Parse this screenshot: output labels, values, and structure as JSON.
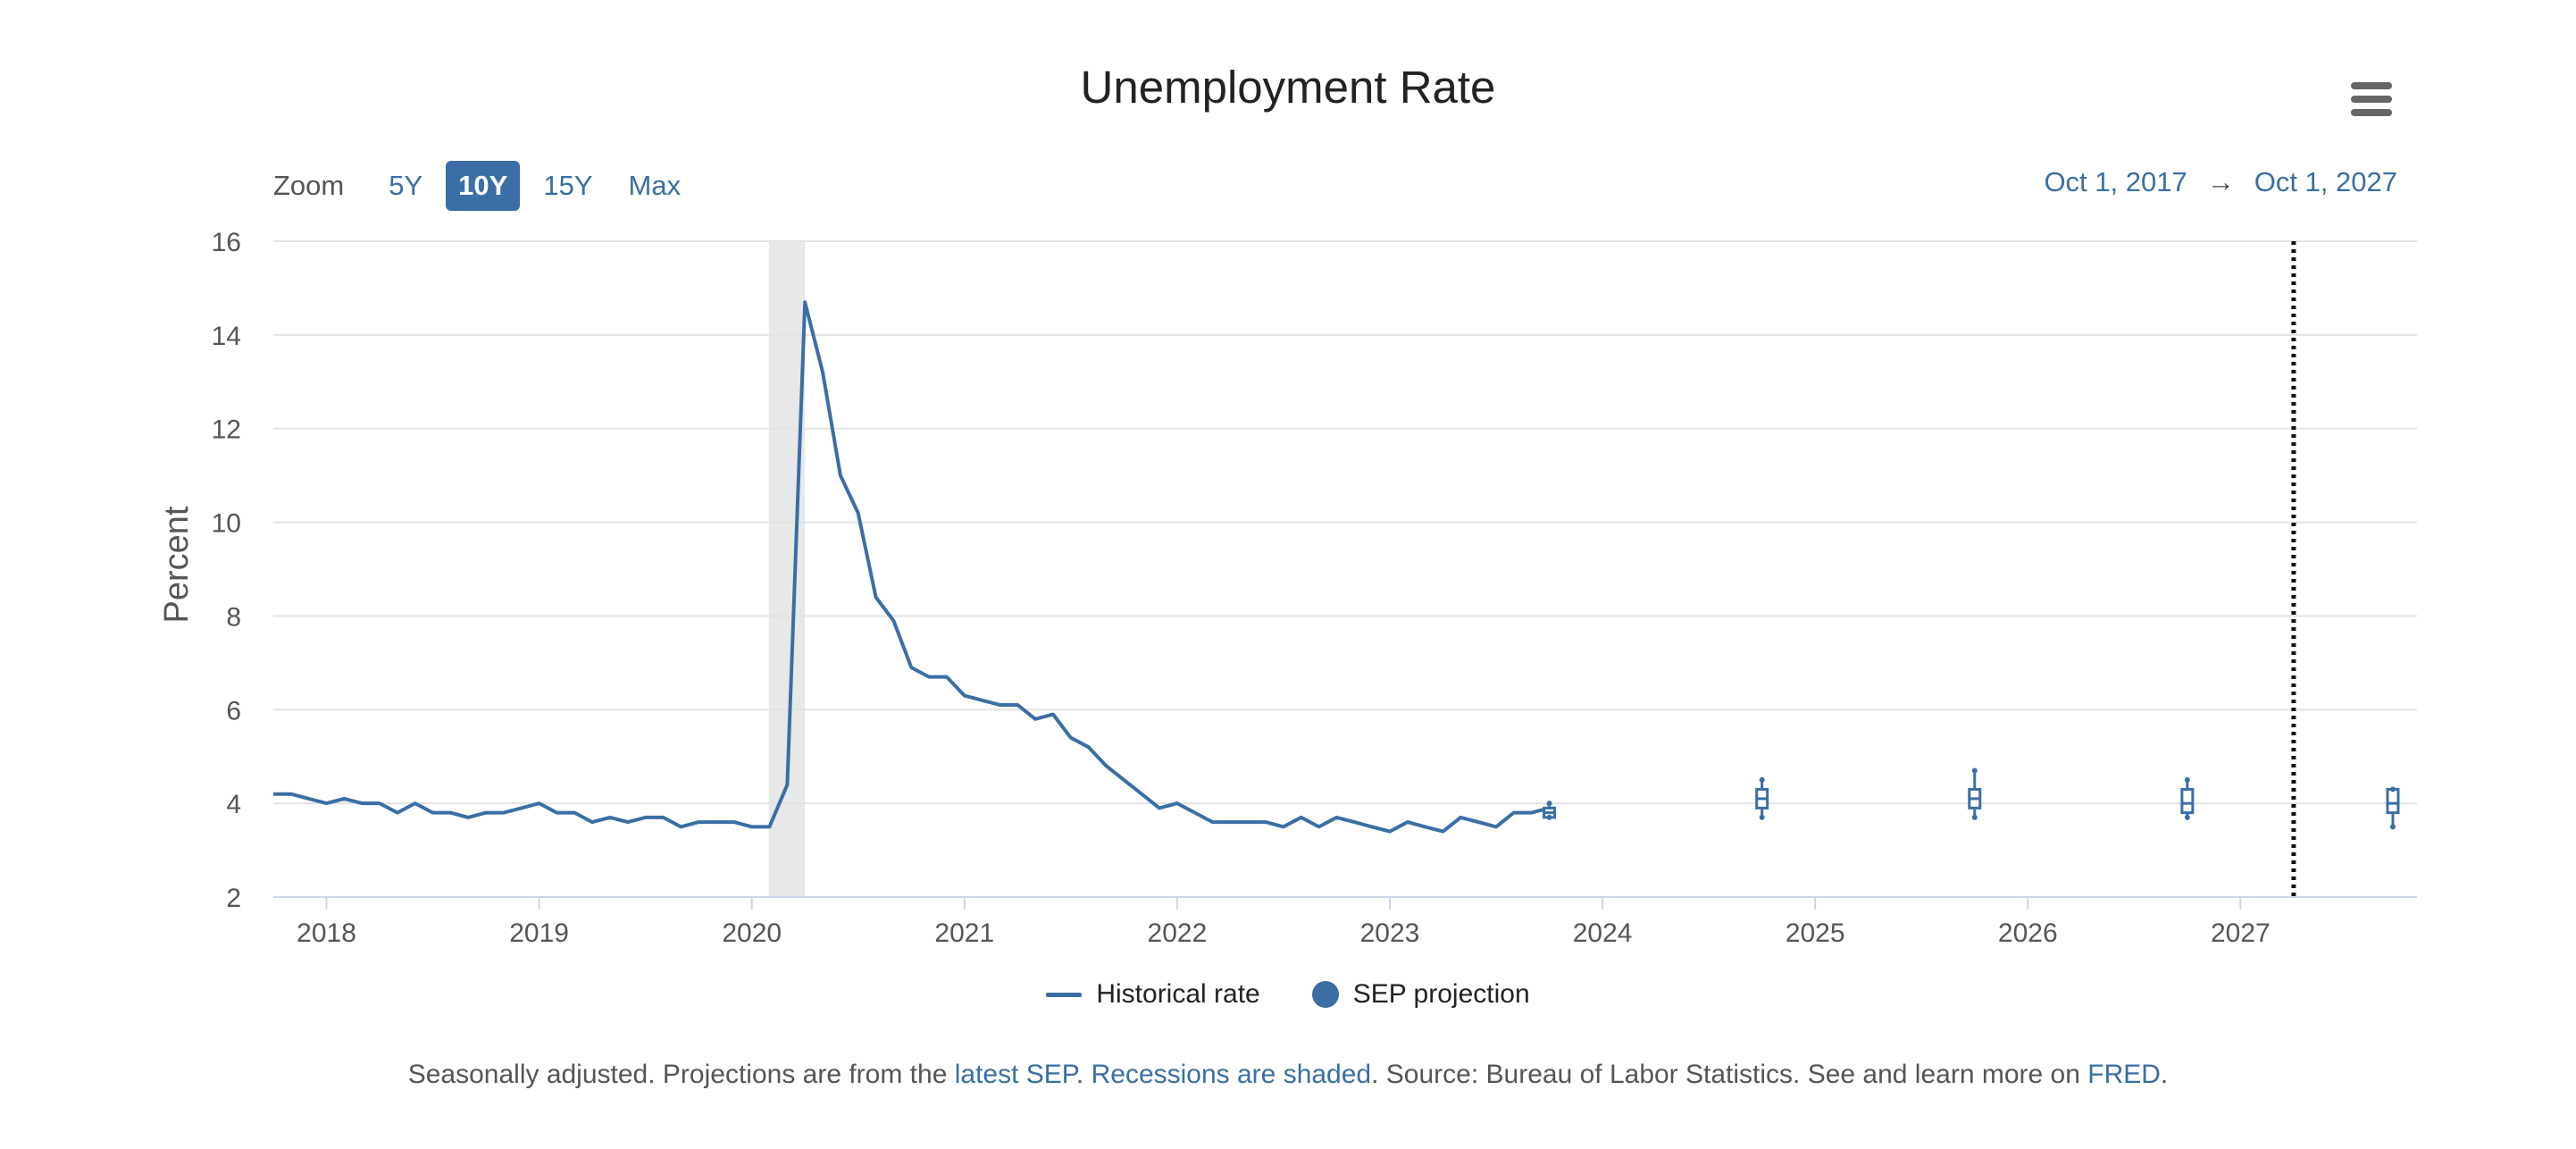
{
  "header": {
    "title": "Unemployment Rate",
    "menu_icon": "hamburger-menu-icon"
  },
  "zoom": {
    "label": "Zoom",
    "options": [
      "5Y",
      "10Y",
      "15Y",
      "Max"
    ],
    "active": "10Y"
  },
  "range": {
    "from": "Oct 1, 2017",
    "arrow": "→",
    "to": "Oct 1, 2027"
  },
  "legend": {
    "historical": "Historical rate",
    "projection": "SEP projection"
  },
  "footer": {
    "t1": "Seasonally adjusted. Projections are from the ",
    "link1": "latest SEP",
    "t2": ". ",
    "link2": "Recessions are shaded",
    "t3": ". Source: Bureau of Labor Statistics. See and learn more on ",
    "link3": "FRED",
    "t4": "."
  },
  "colors": {
    "series": "#3a6ea5",
    "recession": "#e8e8e8",
    "grid": "#e3e3e3",
    "axis": "#ccd6eb",
    "text": "#555555"
  },
  "chart_data": {
    "type": "line",
    "title": "Unemployment Rate",
    "xlabel": "",
    "ylabel": "Percent",
    "xlim": [
      2017.75,
      2027.83
    ],
    "ylim": [
      2,
      16
    ],
    "yticks": [
      2,
      4,
      6,
      8,
      10,
      12,
      14,
      16
    ],
    "xticks": [
      2018,
      2019,
      2020,
      2021,
      2022,
      2023,
      2024,
      2025,
      2026,
      2027
    ],
    "grid": true,
    "legend_position": "bottom-center",
    "recession": {
      "start": 2020.08,
      "end": 2020.25
    },
    "marker_line_x": 2027.25,
    "series": [
      {
        "name": "Historical rate",
        "start": 2017.75,
        "step": 0.08333,
        "values": [
          4.2,
          4.2,
          4.1,
          4.0,
          4.1,
          4.0,
          4.0,
          3.8,
          4.0,
          3.8,
          3.8,
          3.7,
          3.8,
          3.8,
          3.9,
          4.0,
          3.8,
          3.8,
          3.6,
          3.7,
          3.6,
          3.7,
          3.7,
          3.5,
          3.6,
          3.6,
          3.6,
          3.5,
          3.5,
          4.4,
          14.7,
          13.2,
          11.0,
          10.2,
          8.4,
          7.9,
          6.9,
          6.7,
          6.7,
          6.3,
          6.2,
          6.1,
          6.1,
          5.8,
          5.9,
          5.4,
          5.2,
          4.8,
          4.5,
          4.2,
          3.9,
          4.0,
          3.8,
          3.6,
          3.6,
          3.6,
          3.6,
          3.5,
          3.7,
          3.5,
          3.7,
          3.6,
          3.5,
          3.4,
          3.6,
          3.5,
          3.4,
          3.7,
          3.6,
          3.5,
          3.8,
          3.8,
          3.9
        ]
      },
      {
        "name": "SEP projection",
        "points": [
          {
            "x": 2023.75,
            "median": 3.8,
            "q1": 3.7,
            "q3": 3.9,
            "min": 3.7,
            "max": 4.0
          },
          {
            "x": 2024.75,
            "median": 4.1,
            "q1": 3.9,
            "q3": 4.3,
            "min": 3.7,
            "max": 4.5
          },
          {
            "x": 2025.75,
            "median": 4.1,
            "q1": 3.9,
            "q3": 4.3,
            "min": 3.7,
            "max": 4.7
          },
          {
            "x": 2026.75,
            "median": 4.0,
            "q1": 3.8,
            "q3": 4.3,
            "min": 3.7,
            "max": 4.5
          },
          {
            "x": 2027.75,
            "median": 4.0,
            "q1": 3.8,
            "q3": 4.3,
            "min": 3.5,
            "max": 4.3
          }
        ]
      }
    ]
  }
}
